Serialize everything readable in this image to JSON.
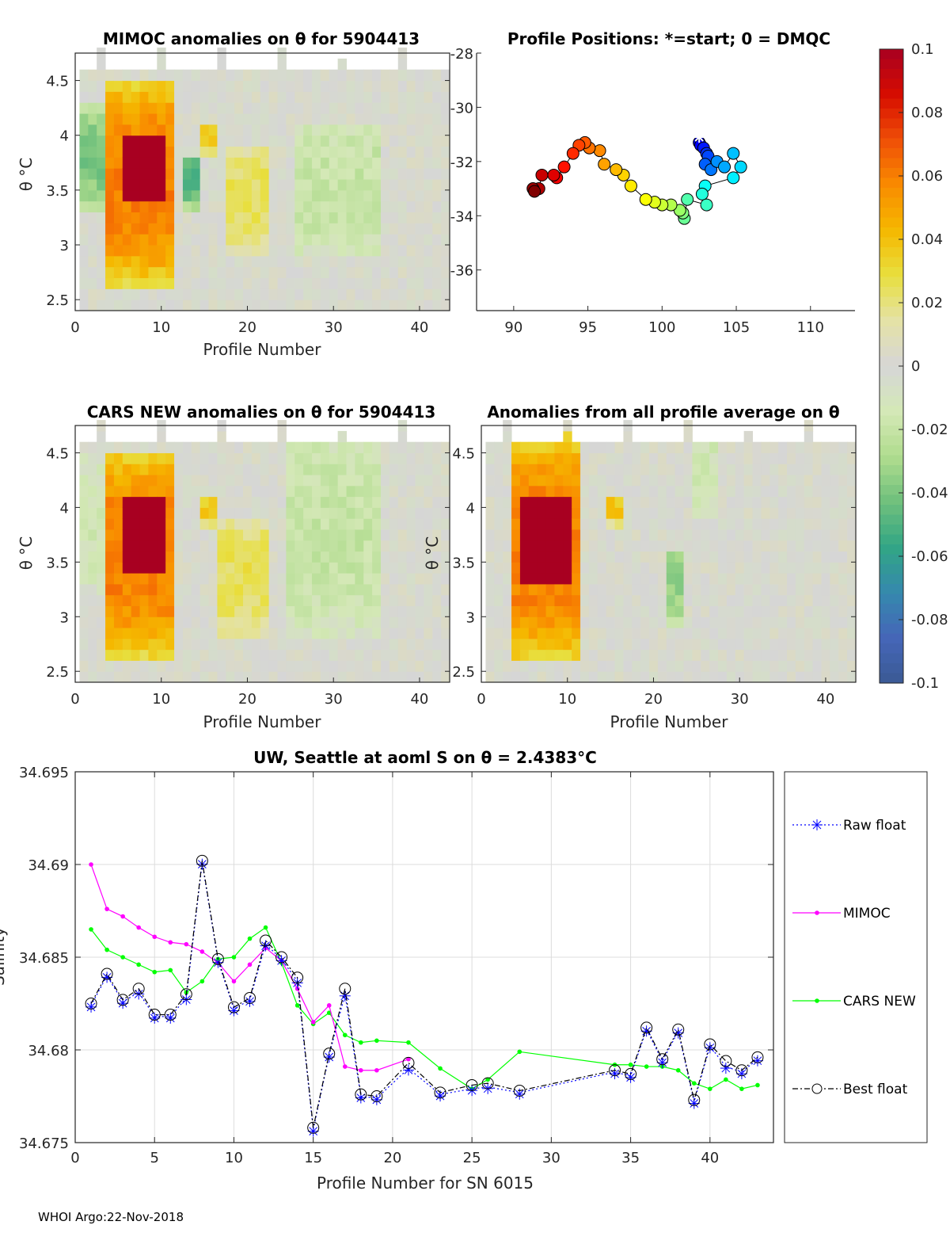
{
  "footer": "WHOI Argo:22-Nov-2018",
  "chart_data": [
    {
      "id": "mimoc",
      "type": "heatmap",
      "title": "MIMOC anomalies on θ  for 5904413",
      "xlabel": "Profile Number",
      "ylabel": "θ °C",
      "xlim": [
        0,
        43.5
      ],
      "ylim": [
        2.4,
        4.75
      ],
      "xticks": [
        "0",
        "10",
        "20",
        "30",
        "40"
      ],
      "yticks": [
        "2.5",
        "3",
        "3.5",
        "4",
        "4.5"
      ],
      "features": [
        {
          "profiles": [
            1,
            3
          ],
          "theta": [
            3.3,
            4.2
          ],
          "anomaly": -0.04
        },
        {
          "profiles": [
            4,
            11
          ],
          "theta": [
            2.6,
            4.45
          ],
          "anomaly": 0.06
        },
        {
          "profiles": [
            6,
            10.5
          ],
          "theta": [
            3.4,
            4.0
          ],
          "anomaly": 0.095
        },
        {
          "profiles": [
            13,
            14
          ],
          "theta": [
            3.3,
            3.8
          ],
          "anomaly": -0.05
        },
        {
          "profiles": [
            15,
            16
          ],
          "theta": [
            3.8,
            4.05
          ],
          "anomaly": 0.04
        },
        {
          "profiles": [
            18,
            22
          ],
          "theta": [
            2.9,
            3.85
          ],
          "anomaly": 0.025
        },
        {
          "profiles": [
            26,
            35
          ],
          "theta": [
            2.85,
            4.1
          ],
          "anomaly": -0.02
        }
      ]
    },
    {
      "id": "positions",
      "type": "scatter",
      "title": "Profile Positions: *=start; 0 = DMQC",
      "xlabel": "",
      "ylabel": "",
      "xlim": [
        87.5,
        113
      ],
      "ylim": [
        -37.5,
        -28
      ],
      "xticks": [
        "90",
        "95",
        "100",
        "105",
        "110"
      ],
      "yticks": [
        "-28",
        "-30",
        "-32",
        "-34",
        "-36"
      ],
      "start": [
        102.5,
        -31.1
      ],
      "lon": [
        102.5,
        102.6,
        102.8,
        103.0,
        103.1,
        102.9,
        103.3,
        103.7,
        104.2,
        104.8,
        105.3,
        104.8,
        102.9,
        102.7,
        103.0,
        101.7,
        101.5,
        101.4,
        101.2,
        100.6,
        100.0,
        99.5,
        98.9,
        97.9,
        97.4,
        96.9,
        96.1,
        95.8,
        95.1,
        94.8,
        94.4,
        94.0,
        93.4,
        92.9,
        92.7,
        91.9,
        91.7,
        91.3,
        91.4
      ],
      "lat": [
        -31.3,
        -31.4,
        -31.5,
        -31.7,
        -31.8,
        -32.1,
        -32.3,
        -32.0,
        -32.2,
        -31.7,
        -32.2,
        -32.6,
        -32.9,
        -33.2,
        -33.6,
        -33.4,
        -34.1,
        -33.9,
        -33.8,
        -33.6,
        -33.6,
        -33.5,
        -33.4,
        -32.9,
        -32.5,
        -32.3,
        -32.1,
        -31.6,
        -31.5,
        -31.3,
        -31.4,
        -31.7,
        -32.2,
        -32.6,
        -32.5,
        -32.5,
        -33.0,
        -33.0,
        -33.1
      ],
      "color_by": "profile number"
    },
    {
      "id": "colorbar",
      "type": "heatmap",
      "range": [
        -0.1,
        0.1
      ],
      "ticks": [
        "0.1",
        "0.08",
        "0.06",
        "0.04",
        "0.02",
        "0",
        "-0.02",
        "-0.04",
        "-0.06",
        "-0.08",
        "-0.1"
      ],
      "stops": [
        "#3b5a94",
        "#4566b8",
        "#3589ad",
        "#32a585",
        "#6fc07c",
        "#b0dc8e",
        "#d4e8b6",
        "#d6d6d6",
        "#e4e2a6",
        "#e8df3e",
        "#f5b800",
        "#f98b00",
        "#ef4e07",
        "#d60c00",
        "#a80021"
      ]
    },
    {
      "id": "cars",
      "type": "heatmap",
      "title": "CARS NEW anomalies on θ for 5904413",
      "xlabel": "Profile Number",
      "ylabel": "θ °C",
      "xlim": [
        0,
        43.5
      ],
      "ylim": [
        2.4,
        4.75
      ],
      "xticks": [
        "0",
        "10",
        "20",
        "30",
        "40"
      ],
      "yticks": [
        "2.5",
        "3",
        "3.5",
        "4",
        "4.5"
      ],
      "features": [
        {
          "profiles": [
            1,
            3
          ],
          "theta": [
            3.2,
            4.4
          ],
          "anomaly": -0.015
        },
        {
          "profiles": [
            4,
            11
          ],
          "theta": [
            2.6,
            4.45
          ],
          "anomaly": 0.06
        },
        {
          "profiles": [
            6,
            10.5
          ],
          "theta": [
            3.4,
            4.05
          ],
          "anomaly": 0.095
        },
        {
          "profiles": [
            15,
            16
          ],
          "theta": [
            3.8,
            4.05
          ],
          "anomaly": 0.04
        },
        {
          "profiles": [
            17,
            22
          ],
          "theta": [
            2.8,
            3.85
          ],
          "anomaly": 0.025
        },
        {
          "profiles": [
            25,
            35
          ],
          "theta": [
            2.8,
            4.7
          ],
          "anomaly": -0.02
        }
      ]
    },
    {
      "id": "allavg",
      "type": "heatmap",
      "title": "Anomalies from all profile average on θ",
      "xlabel": "Profile Number",
      "ylabel": "θ °C",
      "xlim": [
        0,
        43.5
      ],
      "ylim": [
        2.4,
        4.75
      ],
      "xticks": [
        "0",
        "10",
        "20",
        "30",
        "40"
      ],
      "yticks": [
        "2.5",
        "3",
        "3.5",
        "4",
        "4.5"
      ],
      "features": [
        {
          "profiles": [
            4,
            11
          ],
          "theta": [
            2.55,
            4.6
          ],
          "anomaly": 0.06
        },
        {
          "profiles": [
            5,
            10.5
          ],
          "theta": [
            3.3,
            4.1
          ],
          "anomaly": 0.095
        },
        {
          "profiles": [
            15,
            16
          ],
          "theta": [
            3.8,
            4.05
          ],
          "anomaly": 0.04
        },
        {
          "profiles": [
            22,
            23
          ],
          "theta": [
            2.9,
            3.6
          ],
          "anomaly": -0.035
        },
        {
          "profiles": [
            25,
            27
          ],
          "theta": [
            3.9,
            4.7
          ],
          "anomaly": -0.015
        }
      ]
    },
    {
      "id": "salinity",
      "type": "line",
      "title": "UW, Seattle at aoml S on θ = 2.4383°C",
      "xlabel": "Profile Number for SN 6015",
      "ylabel": "Salinity",
      "xlim": [
        0,
        44
      ],
      "ylim": [
        34.675,
        34.695
      ],
      "grid": true,
      "legend": "right-outside",
      "xticks": [
        "0",
        "5",
        "10",
        "15",
        "20",
        "25",
        "30",
        "35",
        "40"
      ],
      "yticks": [
        "34.675",
        "34.68",
        "34.685",
        "34.69",
        "34.695"
      ],
      "series": [
        {
          "name": "Raw float",
          "color": "#0000ff",
          "style": "dotted-star",
          "x": [
            1,
            2,
            3,
            4,
            5,
            6,
            7,
            8,
            9,
            10,
            11,
            12,
            13,
            14,
            15,
            16,
            17,
            18,
            19,
            21,
            23,
            25,
            26,
            28,
            34,
            35,
            36,
            37,
            38,
            39,
            40,
            41,
            42,
            43
          ],
          "y": [
            34.6824,
            34.684,
            34.6826,
            34.6831,
            34.6818,
            34.6818,
            34.6828,
            34.6901,
            34.6848,
            34.6822,
            34.6827,
            34.6857,
            34.6849,
            34.6837,
            34.6757,
            34.6797,
            34.683,
            34.6775,
            34.6774,
            34.679,
            34.6776,
            34.6779,
            34.678,
            34.6777,
            34.6788,
            34.6786,
            34.6811,
            34.6794,
            34.681,
            34.6772,
            34.6802,
            34.6791,
            34.6788,
            34.6795
          ]
        },
        {
          "name": "MIMOC",
          "color": "#ff00ff",
          "style": "solid-dot",
          "x": [
            1,
            2,
            3,
            4,
            5,
            6,
            7,
            8,
            9,
            10,
            11,
            12,
            13,
            14,
            15,
            16,
            17,
            18,
            19,
            21
          ],
          "y": [
            34.69,
            34.6876,
            34.6872,
            34.6866,
            34.6861,
            34.6858,
            34.6857,
            34.6853,
            34.6847,
            34.6837,
            34.6846,
            34.6855,
            34.6848,
            34.6833,
            34.6815,
            34.6824,
            34.6791,
            34.6789,
            34.6789,
            34.6795
          ]
        },
        {
          "name": "CARS NEW",
          "color": "#00ff00",
          "style": "solid-dot",
          "x": [
            1,
            2,
            3,
            4,
            5,
            6,
            7,
            8,
            9,
            10,
            11,
            12,
            13,
            14,
            15,
            16,
            17,
            18,
            19,
            21,
            23,
            25,
            26,
            28,
            34,
            35,
            36,
            37,
            38,
            39,
            40,
            41,
            42,
            43
          ],
          "y": [
            34.6865,
            34.6854,
            34.685,
            34.6846,
            34.6842,
            34.6843,
            34.6831,
            34.6837,
            34.6849,
            34.685,
            34.686,
            34.6866,
            34.6847,
            34.6824,
            34.6814,
            34.682,
            34.6808,
            34.6804,
            34.6805,
            34.6804,
            34.679,
            34.6779,
            34.6784,
            34.6799,
            34.6792,
            34.6792,
            34.6791,
            34.6791,
            34.6789,
            34.6782,
            34.6779,
            34.6784,
            34.6779,
            34.6781
          ]
        },
        {
          "name": "Best float",
          "color": "#000000",
          "style": "dashdot-circle",
          "x": [
            1,
            2,
            3,
            4,
            5,
            6,
            7,
            8,
            9,
            10,
            11,
            12,
            13,
            14,
            15,
            16,
            17,
            18,
            19,
            21,
            23,
            25,
            26,
            28,
            34,
            35,
            36,
            37,
            38,
            39,
            40,
            41,
            42,
            43
          ],
          "y": [
            34.6825,
            34.6841,
            34.6827,
            34.6833,
            34.6819,
            34.6819,
            34.683,
            34.6902,
            34.6849,
            34.6823,
            34.6828,
            34.6859,
            34.685,
            34.6839,
            34.6758,
            34.6798,
            34.6833,
            34.6776,
            34.6775,
            34.6793,
            34.6777,
            34.6781,
            34.6782,
            34.6778,
            34.6789,
            34.6787,
            34.6812,
            34.6795,
            34.6811,
            34.6773,
            34.6803,
            34.6794,
            34.6789,
            34.6796
          ]
        }
      ]
    }
  ]
}
